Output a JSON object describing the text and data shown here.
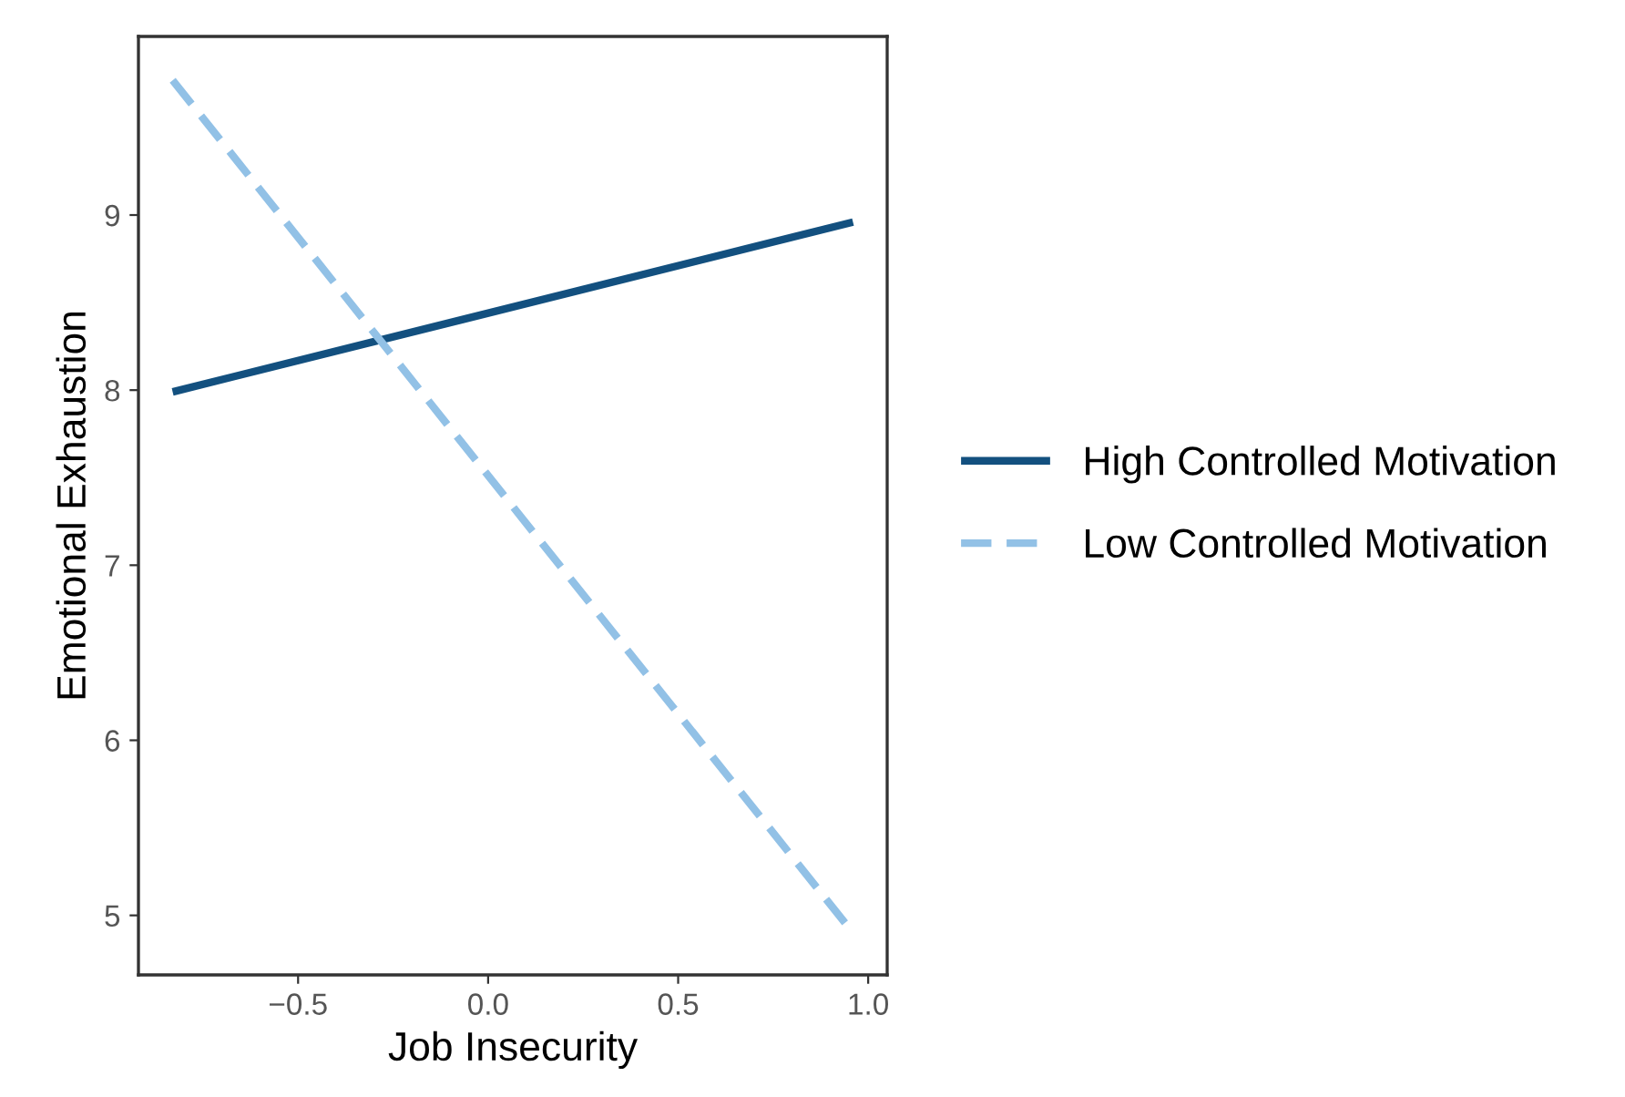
{
  "chart_data": {
    "type": "line",
    "xlabel": "Job Insecurity",
    "ylabel": "Emotional Exhaustion",
    "x": [
      -0.83,
      0.96
    ],
    "series": [
      {
        "name": "High Controlled Motivation",
        "color": "#13507f",
        "values": [
          7.99,
          8.96
        ],
        "line_style": "solid"
      },
      {
        "name": "Low Controlled Motivation",
        "color": "#92c1e6",
        "values": [
          9.77,
          4.9
        ],
        "line_style": "dashed"
      }
    ],
    "xlim": [
      -0.92,
      1.05
    ],
    "ylim": [
      4.66,
      10.02
    ],
    "xticks": [
      {
        "value": -0.5,
        "label": "−0.5"
      },
      {
        "value": 0.0,
        "label": "0.0"
      },
      {
        "value": 0.5,
        "label": "0.5"
      },
      {
        "value": 1.0,
        "label": "1.0"
      }
    ],
    "yticks": [
      5,
      6,
      7,
      8,
      9
    ],
    "grid": false,
    "legend": "right"
  }
}
